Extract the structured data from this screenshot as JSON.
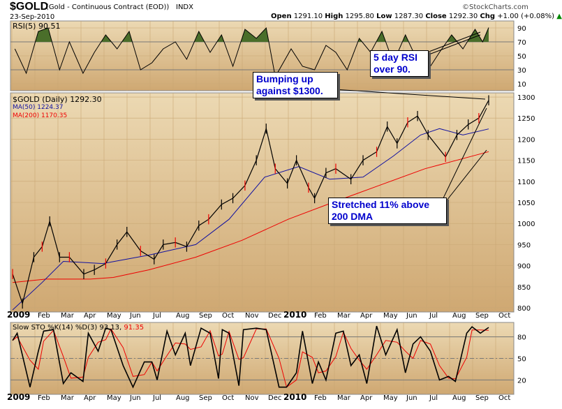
{
  "header": {
    "symbol": "$GOLD",
    "name": "(Gold - Continuous Contract (EOD))",
    "exchange": "INDX",
    "date": "23-Sep-2010",
    "source": "©StockCharts.com",
    "open_label": "Open",
    "open": "1291.10",
    "high_label": "High",
    "high": "1295.80",
    "low_label": "Low",
    "low": "1287.30",
    "close_label": "Close",
    "close": "1292.30",
    "chg_label": "Chg",
    "chg": "+1.00 (+0.08%)"
  },
  "annotations": {
    "rsi": "5 day RSI over 90.",
    "resistance": "Bumping up against $1300.",
    "stretch": "Stretched 11% above 200 DMA"
  },
  "colors": {
    "panel": "#d8b785",
    "price": "#000000",
    "ma50": "#1010a0",
    "ma200": "#ee0000",
    "stoD": "#ee0000",
    "rsiFill": "#4a6e2a"
  },
  "chart_data": [
    {
      "type": "line",
      "panel": "RSI",
      "legend": "RSI(5) 90.51",
      "ylim": [
        0,
        100
      ],
      "yticks": [
        10,
        30,
        50,
        70,
        90
      ],
      "reference_lines": [
        30,
        70
      ],
      "series": [
        {
          "dates": [
            "2009-01-05",
            "2009-01-20",
            "2009-02-05",
            "2009-02-18",
            "2009-03-05",
            "2009-03-18",
            "2009-04-05",
            "2009-04-20",
            "2009-05-05",
            "2009-05-20",
            "2009-06-05",
            "2009-06-20",
            "2009-07-05",
            "2009-07-20",
            "2009-08-05",
            "2009-08-20",
            "2009-09-05",
            "2009-09-20",
            "2009-10-05",
            "2009-10-20",
            "2009-11-05",
            "2009-11-20",
            "2009-12-03",
            "2009-12-15",
            "2010-01-05",
            "2010-01-20",
            "2010-02-05",
            "2010-02-20",
            "2010-03-05",
            "2010-03-20",
            "2010-04-05",
            "2010-04-20",
            "2010-05-05",
            "2010-05-20",
            "2010-06-05",
            "2010-06-20",
            "2010-07-05",
            "2010-07-20",
            "2010-08-05",
            "2010-08-20",
            "2010-09-05",
            "2010-09-15",
            "2010-09-23"
          ],
          "values": [
            60,
            25,
            85,
            90,
            30,
            70,
            25,
            55,
            80,
            60,
            85,
            30,
            40,
            60,
            70,
            45,
            85,
            55,
            80,
            35,
            88,
            75,
            90,
            20,
            60,
            35,
            30,
            65,
            55,
            30,
            75,
            55,
            85,
            40,
            80,
            45,
            30,
            55,
            80,
            60,
            88,
            70,
            90.51
          ]
        }
      ]
    },
    {
      "type": "line",
      "panel": "price",
      "legend": "$GOLD (Daily) 1292.30",
      "ylim": [
        790,
        1310
      ],
      "yticks": [
        800,
        850,
        900,
        950,
        1000,
        1050,
        1100,
        1150,
        1200,
        1250,
        1300
      ],
      "xticks": [
        "2009",
        "Feb",
        "Mar",
        "Apr",
        "May",
        "Jun",
        "Jul",
        "Aug",
        "Sep",
        "Oct",
        "Nov",
        "Dec",
        "2010",
        "Feb",
        "Mar",
        "Apr",
        "May",
        "Jun",
        "Jul",
        "Aug",
        "Sep",
        "Oct"
      ],
      "series": [
        {
          "name": "$GOLD",
          "dates": [
            "2009-01-02",
            "2009-01-15",
            "2009-01-30",
            "2009-02-10",
            "2009-02-20",
            "2009-03-05",
            "2009-03-18",
            "2009-04-06",
            "2009-04-20",
            "2009-05-05",
            "2009-05-20",
            "2009-06-02",
            "2009-06-20",
            "2009-07-08",
            "2009-07-20",
            "2009-08-05",
            "2009-08-20",
            "2009-09-05",
            "2009-09-18",
            "2009-10-05",
            "2009-10-20",
            "2009-11-05",
            "2009-11-20",
            "2009-12-03",
            "2009-12-15",
            "2009-12-31",
            "2010-01-12",
            "2010-01-28",
            "2010-02-05",
            "2010-02-20",
            "2010-03-05",
            "2010-03-25",
            "2010-04-10",
            "2010-04-28",
            "2010-05-12",
            "2010-05-25",
            "2010-06-08",
            "2010-06-21",
            "2010-07-05",
            "2010-07-28",
            "2010-08-12",
            "2010-08-27",
            "2010-09-10",
            "2010-09-23"
          ],
          "values": [
            880,
            810,
            920,
            945,
            1005,
            920,
            920,
            880,
            890,
            905,
            950,
            980,
            935,
            915,
            950,
            955,
            945,
            995,
            1010,
            1045,
            1060,
            1090,
            1150,
            1225,
            1130,
            1095,
            1150,
            1085,
            1060,
            1120,
            1130,
            1105,
            1150,
            1170,
            1230,
            1190,
            1240,
            1255,
            1210,
            1158,
            1210,
            1235,
            1250,
            1292.3
          ]
        },
        {
          "name": "MA(50) 1224.37",
          "dates": [
            "2009-01-02",
            "2009-02-10",
            "2009-03-10",
            "2009-05-01",
            "2009-07-01",
            "2009-09-01",
            "2009-10-15",
            "2009-12-01",
            "2010-01-15",
            "2010-02-25",
            "2010-04-10",
            "2010-05-20",
            "2010-06-25",
            "2010-07-20",
            "2010-08-20",
            "2010-09-23"
          ],
          "values": [
            795,
            860,
            910,
            905,
            925,
            950,
            1010,
            1110,
            1135,
            1105,
            1110,
            1160,
            1210,
            1225,
            1210,
            1224.37
          ]
        },
        {
          "name": "MA(200) 1170.35",
          "dates": [
            "2009-01-02",
            "2009-02-15",
            "2009-04-15",
            "2009-05-15",
            "2009-07-01",
            "2009-09-01",
            "2009-11-01",
            "2010-01-01",
            "2010-03-01",
            "2010-05-01",
            "2010-07-01",
            "2010-09-23"
          ],
          "values": [
            860,
            868,
            868,
            872,
            890,
            920,
            960,
            1010,
            1050,
            1090,
            1130,
            1170.35
          ]
        }
      ]
    },
    {
      "type": "line",
      "panel": "STO",
      "legend": "Slow STO %K(14) %D(3) 93.13,",
      "legend_d": "91.35",
      "ylim": [
        0,
        100
      ],
      "yticks": [
        20,
        50,
        80
      ],
      "reference_lines": [
        20,
        50,
        80
      ],
      "series": [
        {
          "name": "%K",
          "dates": [
            "2009-01-02",
            "2009-01-08",
            "2009-01-25",
            "2009-02-05",
            "2009-02-12",
            "2009-02-25",
            "2009-03-10",
            "2009-03-20",
            "2009-04-05",
            "2009-04-12",
            "2009-04-25",
            "2009-05-05",
            "2009-05-12",
            "2009-05-28",
            "2009-06-10",
            "2009-06-25",
            "2009-07-05",
            "2009-07-12",
            "2009-07-25",
            "2009-08-05",
            "2009-08-18",
            "2009-08-25",
            "2009-09-08",
            "2009-09-20",
            "2009-10-01",
            "2009-10-06",
            "2009-10-15",
            "2009-10-28",
            "2009-11-03",
            "2009-11-20",
            "2009-12-03",
            "2009-12-20",
            "2009-12-30",
            "2010-01-12",
            "2010-01-20",
            "2010-02-02",
            "2010-02-10",
            "2010-02-20",
            "2010-03-05",
            "2010-03-15",
            "2010-03-25",
            "2010-04-05",
            "2010-04-15",
            "2010-04-28",
            "2010-05-10",
            "2010-05-25",
            "2010-06-05",
            "2010-06-15",
            "2010-06-25",
            "2010-07-08",
            "2010-07-20",
            "2010-08-01",
            "2010-08-10",
            "2010-08-25",
            "2010-09-01",
            "2010-09-12",
            "2010-09-23"
          ],
          "values": [
            75,
            85,
            10,
            60,
            88,
            90,
            15,
            30,
            18,
            85,
            60,
            92,
            90,
            40,
            10,
            45,
            45,
            20,
            88,
            55,
            85,
            40,
            92,
            85,
            22,
            90,
            85,
            12,
            90,
            92,
            90,
            10,
            10,
            30,
            88,
            15,
            45,
            20,
            85,
            88,
            40,
            55,
            15,
            95,
            55,
            90,
            30,
            70,
            80,
            60,
            20,
            25,
            18,
            85,
            94,
            85,
            93.13
          ]
        }
      ]
    }
  ]
}
